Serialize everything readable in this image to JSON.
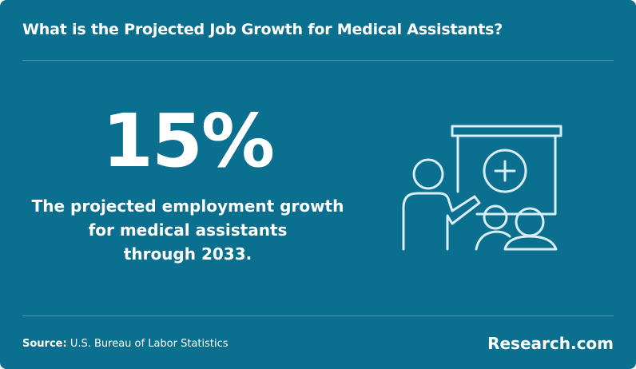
{
  "header": {
    "title": "What is the Projected Job Growth for Medical Assistants?"
  },
  "stat": {
    "value": "15%",
    "description": [
      "The projected employment growth",
      "for medical assistants",
      "through 2033."
    ]
  },
  "footer": {
    "source_label": "Source:",
    "source": "U.S. Bureau of Labor Statistics",
    "brand": "Research.com"
  }
}
